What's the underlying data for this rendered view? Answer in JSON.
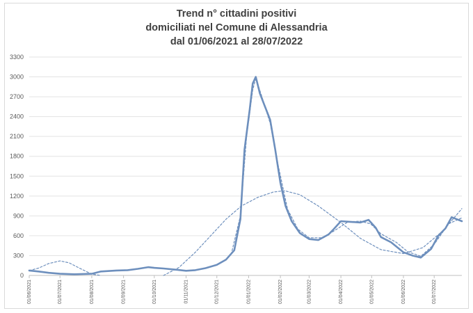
{
  "chart_data": {
    "type": "line",
    "title_lines": [
      "Trend n° cittadini positivi",
      "domiciliati nel Comune di Alessandria",
      "dal 01/06/2021 al 28/07/2022"
    ],
    "xlabel": "",
    "ylabel": "",
    "ylim": [
      0,
      3300
    ],
    "yticks": [
      "0",
      "300",
      "600",
      "900",
      "1200",
      "1500",
      "1800",
      "2100",
      "2400",
      "2700",
      "3000",
      "3300"
    ],
    "xticks": [
      "01/06/2021",
      "01/07/2021",
      "01/08/2021",
      "01/09/2021",
      "01/10/2021",
      "01/11/2021",
      "01/12/2021",
      "01/01/2022",
      "01/02/2022",
      "01/03/2022",
      "01/04/2022",
      "01/05/2022",
      "01/06/2022",
      "01/07/2022"
    ],
    "grid": true,
    "legend": "none",
    "series": [
      {
        "style": "solid",
        "color": "#6d8fbd",
        "points": [
          [
            "2021-06-01",
            75
          ],
          [
            "2021-06-10",
            60
          ],
          [
            "2021-06-20",
            40
          ],
          [
            "2021-07-01",
            25
          ],
          [
            "2021-07-15",
            18
          ],
          [
            "2021-08-01",
            25
          ],
          [
            "2021-08-10",
            60
          ],
          [
            "2021-08-25",
            75
          ],
          [
            "2021-09-05",
            80
          ],
          [
            "2021-09-15",
            100
          ],
          [
            "2021-09-25",
            125
          ],
          [
            "2021-10-01",
            115
          ],
          [
            "2021-10-10",
            105
          ],
          [
            "2021-10-20",
            90
          ],
          [
            "2021-11-01",
            70
          ],
          [
            "2021-11-10",
            80
          ],
          [
            "2021-11-20",
            110
          ],
          [
            "2021-12-01",
            160
          ],
          [
            "2021-12-10",
            240
          ],
          [
            "2021-12-18",
            380
          ],
          [
            "2021-12-24",
            850
          ],
          [
            "2021-12-28",
            1900
          ],
          [
            "2022-01-02",
            2500
          ],
          [
            "2022-01-05",
            2900
          ],
          [
            "2022-01-08",
            3000
          ],
          [
            "2022-01-12",
            2750
          ],
          [
            "2022-01-17",
            2550
          ],
          [
            "2022-01-22",
            2350
          ],
          [
            "2022-01-27",
            1900
          ],
          [
            "2022-02-01",
            1400
          ],
          [
            "2022-02-06",
            1050
          ],
          [
            "2022-02-12",
            820
          ],
          [
            "2022-02-20",
            640
          ],
          [
            "2022-03-01",
            550
          ],
          [
            "2022-03-10",
            535
          ],
          [
            "2022-03-20",
            620
          ],
          [
            "2022-03-25",
            700
          ],
          [
            "2022-04-01",
            820
          ],
          [
            "2022-04-10",
            810
          ],
          [
            "2022-04-20",
            800
          ],
          [
            "2022-04-28",
            840
          ],
          [
            "2022-05-05",
            720
          ],
          [
            "2022-05-10",
            580
          ],
          [
            "2022-05-20",
            500
          ],
          [
            "2022-06-01",
            350
          ],
          [
            "2022-06-10",
            300
          ],
          [
            "2022-06-18",
            270
          ],
          [
            "2022-06-28",
            400
          ],
          [
            "2022-07-05",
            600
          ],
          [
            "2022-07-12",
            710
          ],
          [
            "2022-07-18",
            880
          ],
          [
            "2022-07-28",
            820
          ]
        ]
      },
      {
        "style": "dashed",
        "color": "#6d8fbd",
        "points": [
          [
            "2021-06-01",
            75
          ],
          [
            "2021-06-10",
            110
          ],
          [
            "2021-06-20",
            180
          ],
          [
            "2021-07-01",
            220
          ],
          [
            "2021-07-10",
            190
          ],
          [
            "2021-07-20",
            110
          ],
          [
            "2021-08-01",
            20
          ],
          [
            "2021-08-10",
            0
          ]
        ]
      },
      {
        "style": "dashed",
        "color": "#6d8fbd",
        "points": [
          [
            "2021-10-10",
            0
          ],
          [
            "2021-10-25",
            120
          ],
          [
            "2021-11-10",
            350
          ],
          [
            "2021-11-25",
            600
          ],
          [
            "2021-12-10",
            850
          ],
          [
            "2021-12-25",
            1050
          ],
          [
            "2022-01-10",
            1180
          ],
          [
            "2022-01-25",
            1260
          ],
          [
            "2022-02-05",
            1280
          ],
          [
            "2022-02-20",
            1220
          ],
          [
            "2022-03-10",
            1050
          ],
          [
            "2022-04-01",
            800
          ],
          [
            "2022-04-20",
            560
          ],
          [
            "2022-05-10",
            390
          ],
          [
            "2022-06-01",
            330
          ],
          [
            "2022-06-20",
            420
          ],
          [
            "2022-07-10",
            680
          ],
          [
            "2022-07-28",
            1010
          ]
        ]
      },
      {
        "style": "dashed",
        "color": "#6d8fbd",
        "points": [
          [
            "2021-12-15",
            320
          ],
          [
            "2021-12-24",
            900
          ],
          [
            "2021-12-30",
            2100
          ],
          [
            "2022-01-05",
            2800
          ],
          [
            "2022-01-08",
            2980
          ],
          [
            "2022-01-14",
            2700
          ],
          [
            "2022-01-22",
            2300
          ],
          [
            "2022-01-30",
            1650
          ],
          [
            "2022-02-08",
            1000
          ],
          [
            "2022-02-18",
            700
          ],
          [
            "2022-03-01",
            570
          ],
          [
            "2022-03-15",
            570
          ],
          [
            "2022-03-28",
            700
          ],
          [
            "2022-04-08",
            810
          ],
          [
            "2022-04-20",
            820
          ],
          [
            "2022-04-30",
            780
          ],
          [
            "2022-05-10",
            630
          ],
          [
            "2022-05-25",
            500
          ],
          [
            "2022-06-05",
            360
          ],
          [
            "2022-06-18",
            290
          ],
          [
            "2022-07-01",
            470
          ],
          [
            "2022-07-15",
            780
          ],
          [
            "2022-07-28",
            870
          ]
        ]
      }
    ]
  }
}
